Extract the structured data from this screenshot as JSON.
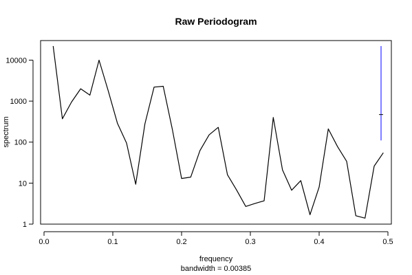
{
  "chart_data": {
    "type": "line",
    "title": "Raw Periodogram",
    "xlabel": "frequency",
    "xlabel_sub": "bandwidth = 0.00385",
    "ylabel": "spectrum",
    "xlim": [
      -0.005,
      0.505
    ],
    "ylim": [
      1,
      30000
    ],
    "y_scale": "log",
    "x_ticks": [
      {
        "value": 0.0,
        "label": "0.0"
      },
      {
        "value": 0.1,
        "label": "0.1"
      },
      {
        "value": 0.2,
        "label": "0.2"
      },
      {
        "value": 0.3,
        "label": "0.3"
      },
      {
        "value": 0.4,
        "label": "0.4"
      },
      {
        "value": 0.5,
        "label": "0.5"
      }
    ],
    "y_ticks": [
      {
        "value": 1,
        "label": "1"
      },
      {
        "value": 10,
        "label": "10"
      },
      {
        "value": 100,
        "label": "100"
      },
      {
        "value": 1000,
        "label": "1000"
      },
      {
        "value": 10000,
        "label": "10000"
      }
    ],
    "x": [
      0.0133,
      0.0267,
      0.04,
      0.0533,
      0.0667,
      0.08,
      0.0933,
      0.1067,
      0.12,
      0.1333,
      0.1467,
      0.16,
      0.1733,
      0.1867,
      0.2,
      0.2133,
      0.2267,
      0.24,
      0.2533,
      0.2667,
      0.28,
      0.2933,
      0.3067,
      0.32,
      0.3333,
      0.3467,
      0.36,
      0.3733,
      0.3867,
      0.4,
      0.4133,
      0.4267,
      0.44,
      0.4533,
      0.4667,
      0.48,
      0.4933
    ],
    "values": [
      22000,
      370,
      950,
      2000,
      1400,
      10000,
      1800,
      290,
      95,
      9.4,
      280,
      2200,
      2300,
      200,
      13,
      14,
      62,
      150,
      230,
      16,
      6.8,
      2.7,
      3.2,
      3.7,
      400,
      21,
      6.7,
      11.5,
      1.7,
      8,
      210,
      78,
      34,
      1.6,
      1.4,
      26,
      55
    ],
    "series_color": "#000000",
    "bandwidth_marker": {
      "x": 0.49,
      "center": 470,
      "lower": 110,
      "upper": 22000,
      "color": "#0000ff"
    }
  }
}
